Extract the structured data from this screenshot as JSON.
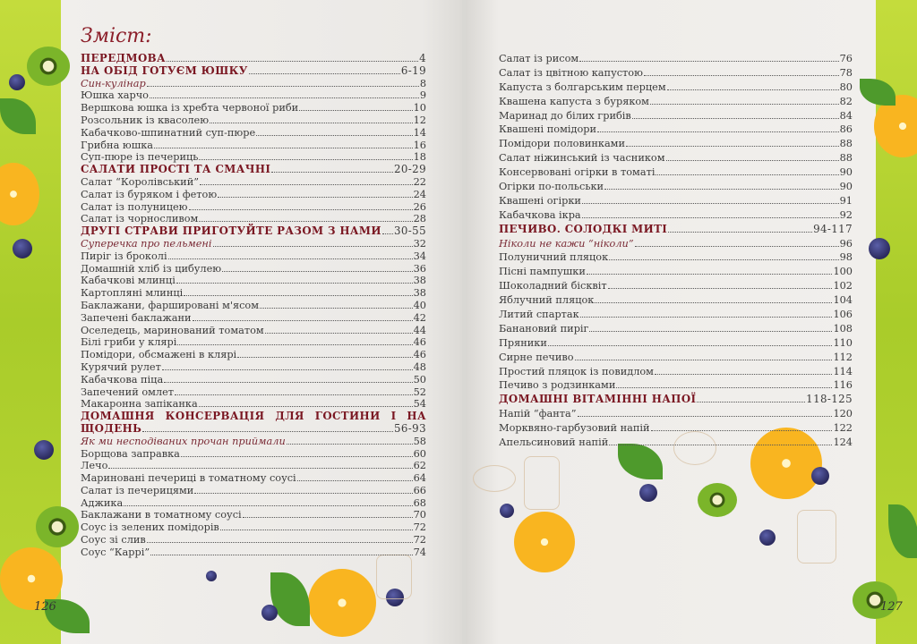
{
  "title": "Зміст:",
  "page_numbers": {
    "left": "126",
    "right": "127"
  },
  "colors": {
    "heading": "#7a1722",
    "green_strip": "#b5d334",
    "paper": "#efedea"
  },
  "toc": {
    "left": [
      {
        "title": "ПЕРЕДМОВА",
        "page": "4",
        "style": "section"
      },
      {
        "title": "НА ОБІД ГОТУЄМ ЮШКУ",
        "page": "6-19",
        "style": "section"
      },
      {
        "title": "Син-кулінар",
        "page": "8",
        "style": "italic"
      },
      {
        "title": "Юшка харчо",
        "page": "9",
        "style": "normal"
      },
      {
        "title": "Вершкова юшка із хребта червоної риби",
        "page": "10",
        "style": "normal"
      },
      {
        "title": "Розсольник із квасолею",
        "page": "12",
        "style": "normal"
      },
      {
        "title": "Кабачково-шпинатний суп-пюре",
        "page": "14",
        "style": "normal"
      },
      {
        "title": "Грибна юшка",
        "page": "16",
        "style": "normal"
      },
      {
        "title": "Суп-пюре із печериць",
        "page": "18",
        "style": "normal"
      },
      {
        "title": "САЛАТИ ПРОСТІ ТА СМАЧНІ",
        "page": "20-29",
        "style": "section"
      },
      {
        "title": "Салат “Королівський”",
        "page": "22",
        "style": "normal"
      },
      {
        "title": "Салат із буряком і фетою",
        "page": "24",
        "style": "normal"
      },
      {
        "title": "Салат із полуницею",
        "page": "26",
        "style": "normal"
      },
      {
        "title": "Салат із чорносливом",
        "page": "28",
        "style": "normal"
      },
      {
        "title": "ДРУГІ СТРАВИ ПРИГОТУЙТЕ РАЗОМ З НАМИ",
        "page": "30-55",
        "style": "section"
      },
      {
        "title": "Суперечка про пельмені",
        "page": "32",
        "style": "italic"
      },
      {
        "title": "Пиріг із броколі",
        "page": "34",
        "style": "normal"
      },
      {
        "title": "Домашній хліб із цибулею",
        "page": "36",
        "style": "normal"
      },
      {
        "title": "Кабачкові млинці",
        "page": "38",
        "style": "normal"
      },
      {
        "title": "Картопляні млинці",
        "page": "38",
        "style": "normal"
      },
      {
        "title": "Баклажани, фаршировані м'ясом",
        "page": "40",
        "style": "normal"
      },
      {
        "title": "Запечені баклажани",
        "page": "42",
        "style": "normal"
      },
      {
        "title": "Оселедець, маринований томатом",
        "page": "44",
        "style": "normal"
      },
      {
        "title": "Білі гриби у клярі",
        "page": "46",
        "style": "normal"
      },
      {
        "title": "Помідори, обсмажені в клярі",
        "page": "46",
        "style": "normal"
      },
      {
        "title": "Курячий рулет",
        "page": "48",
        "style": "normal"
      },
      {
        "title": "Кабачкова піца",
        "page": "50",
        "style": "normal"
      },
      {
        "title": "Запечений омлет",
        "page": "52",
        "style": "normal"
      },
      {
        "title": "Макаронна запіканка",
        "page": "54",
        "style": "normal"
      },
      {
        "title": "ДОМАШНЯ КОНСЕРВАЦІЯ ДЛЯ ГОСТИНИ І НА",
        "title_cont": "ЩОДЕНЬ",
        "page": "56-93",
        "style": "section"
      },
      {
        "title": "Як ми несподіваних прочан приймали",
        "page": "58",
        "style": "italic"
      },
      {
        "title": "Борщова заправка",
        "page": "60",
        "style": "normal"
      },
      {
        "title": "Лечо",
        "page": "62",
        "style": "normal"
      },
      {
        "title": "Мариновані печериці в томатному соусі",
        "page": "64",
        "style": "normal"
      },
      {
        "title": "Салат із печерицями",
        "page": "66",
        "style": "normal"
      },
      {
        "title": "Аджика",
        "page": "68",
        "style": "normal"
      },
      {
        "title": "Баклажани в томатному соусі",
        "page": "70",
        "style": "normal"
      },
      {
        "title": "Соус із зелених помідорів",
        "page": "72",
        "style": "normal"
      },
      {
        "title": "Соус зі слив",
        "page": "72",
        "style": "normal"
      },
      {
        "title": "Соус “Каррі”",
        "page": "74",
        "style": "normal"
      }
    ],
    "right": [
      {
        "title": "Салат із рисом",
        "page": "76",
        "style": "normal"
      },
      {
        "title": "Салат із цвітною капустою",
        "page": "78",
        "style": "normal"
      },
      {
        "title": "Капуста з болгарським перцем",
        "page": "80",
        "style": "normal"
      },
      {
        "title": "Квашена капуста з буряком",
        "page": "82",
        "style": "normal"
      },
      {
        "title": "Маринад до білих грибів",
        "page": "84",
        "style": "normal"
      },
      {
        "title": "Квашені помідори",
        "page": "86",
        "style": "normal"
      },
      {
        "title": "Помідори половинками",
        "page": "88",
        "style": "normal"
      },
      {
        "title": "Салат ніжинський із часником",
        "page": "88",
        "style": "normal"
      },
      {
        "title": "Консервовані огірки в томаті",
        "page": "90",
        "style": "normal"
      },
      {
        "title": "Огірки по-польськи",
        "page": "90",
        "style": "normal"
      },
      {
        "title": "Квашені огірки",
        "page": "91",
        "style": "normal"
      },
      {
        "title": "Кабачкова ікра",
        "page": "92",
        "style": "normal"
      },
      {
        "title": "ПЕЧИВО. СОЛОДКІ МИТІ",
        "page": "94-117",
        "style": "section"
      },
      {
        "title": "Ніколи не кажи “ніколи”",
        "page": "96",
        "style": "italic"
      },
      {
        "title": "Полуничний пляцок",
        "page": "98",
        "style": "normal"
      },
      {
        "title": "Пісні пампушки",
        "page": "100",
        "style": "normal"
      },
      {
        "title": "Шоколадний бісквіт",
        "page": "102",
        "style": "normal"
      },
      {
        "title": "Яблучний пляцок",
        "page": "104",
        "style": "normal"
      },
      {
        "title": "Литий спартак",
        "page": "106",
        "style": "normal"
      },
      {
        "title": "Банановий пиріг",
        "page": "108",
        "style": "normal"
      },
      {
        "title": "Пряники",
        "page": "110",
        "style": "normal"
      },
      {
        "title": "Сирне печиво",
        "page": "112",
        "style": "normal"
      },
      {
        "title": "Простий пляцок із повидлом",
        "page": "114",
        "style": "normal"
      },
      {
        "title": "Печиво з родзинками",
        "page": "116",
        "style": "normal"
      },
      {
        "title": "ДОМАШНІ ВІТАМІННІ НАПОЇ",
        "page": "118-125",
        "style": "section"
      },
      {
        "title": "Напій “фанта”",
        "page": "120",
        "style": "normal"
      },
      {
        "title": "Морквяно-гарбузовий напій",
        "page": "122",
        "style": "normal"
      },
      {
        "title": "Апельсиновий напій",
        "page": "124",
        "style": "normal"
      }
    ]
  }
}
